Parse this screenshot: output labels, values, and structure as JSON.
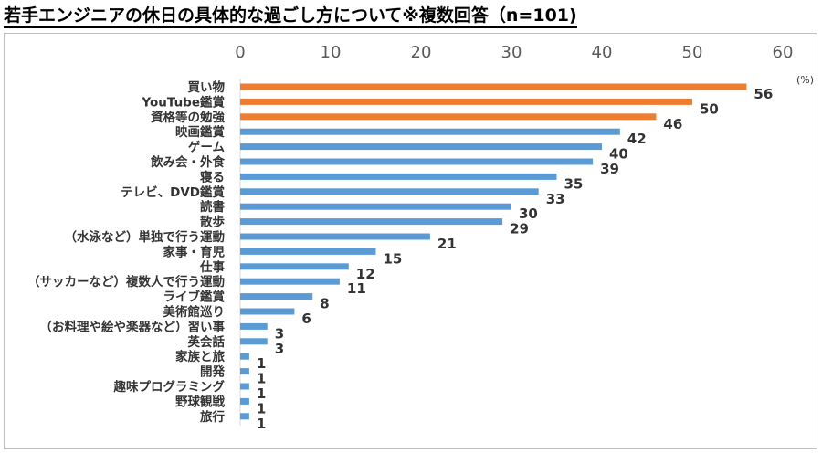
{
  "title": "若手エンジニアの休日の具体的な過ごし方について※複数回答（n=101)",
  "chart_data": {
    "type": "bar",
    "orientation": "horizontal",
    "unit_label": "(%)",
    "xlim": [
      0,
      60
    ],
    "xticks": [
      0,
      10,
      20,
      30,
      40,
      50,
      60
    ],
    "xtick_position": "top",
    "grid": false,
    "colors": {
      "top3": "#ed7d31",
      "rest": "#5b9bd5"
    },
    "categories": [
      "買い物",
      "YouTube鑑賞",
      "資格等の勉強",
      "映画鑑賞",
      "ゲーム",
      "飲み会・外食",
      "寝る",
      "テレビ、DVD鑑賞",
      "読書",
      "散歩",
      "（水泳など）単独で行う運動",
      "家事・育児",
      "仕事",
      "（サッカーなど）複数人で行う運動",
      "ライブ鑑賞",
      "美術館巡り",
      "（お料理や絵や楽器など）習い事",
      "英会話",
      "家族と旅",
      "開発",
      "趣味プログラミング",
      "野球観戦",
      "旅行"
    ],
    "values": [
      56,
      50,
      46,
      42,
      40,
      39,
      35,
      33,
      30,
      29,
      21,
      15,
      12,
      11,
      8,
      6,
      3,
      3,
      1,
      1,
      1,
      1,
      1
    ]
  }
}
